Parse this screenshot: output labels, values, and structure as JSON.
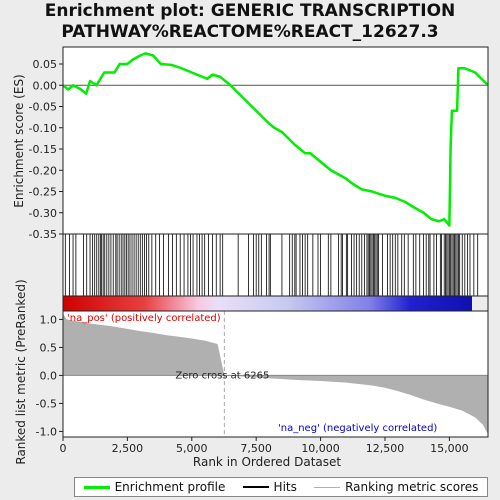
{
  "title_line1": "Enrichment plot: GENERIC TRANSCRIPTION",
  "title_line2": "PATHWAY%REACTOME%REACT_12627.3",
  "legend": {
    "profile": "Enrichment profile",
    "hits": "Hits",
    "ranking": "Ranking metric scores"
  },
  "colors": {
    "profile": "#00ee00",
    "hits": "#000000",
    "ranking": "#b0b0b0",
    "positive": "#dd0000",
    "negative": "#0000cc"
  },
  "chart_data": {
    "type": "line",
    "x_range": [
      0,
      16500
    ],
    "x_ticks": [
      "0",
      "2,500",
      "5,000",
      "7,500",
      "10,000",
      "12,500",
      "15,000"
    ],
    "x_tick_values": [
      0,
      2500,
      5000,
      7500,
      10000,
      12500,
      15000
    ],
    "xlabel": "Rank in Ordered Dataset",
    "top": {
      "ylabel": "Enrichment score (ES)",
      "ylim": [
        -0.35,
        0.09
      ],
      "y_ticks": [
        "0.05",
        "0.00",
        "-0.05",
        "-0.10",
        "-0.15",
        "-0.20",
        "-0.25",
        "-0.30",
        "-0.35"
      ],
      "y_tick_values": [
        0.05,
        0.0,
        -0.05,
        -0.1,
        -0.15,
        -0.2,
        -0.25,
        -0.3,
        -0.35
      ],
      "profile": [
        [
          0,
          0
        ],
        [
          200,
          -0.01
        ],
        [
          400,
          0.0
        ],
        [
          700,
          -0.01
        ],
        [
          900,
          -0.02
        ],
        [
          1050,
          0.01
        ],
        [
          1300,
          0.0
        ],
        [
          1400,
          0.01
        ],
        [
          1600,
          0.03
        ],
        [
          2000,
          0.03
        ],
        [
          2200,
          0.05
        ],
        [
          2500,
          0.05
        ],
        [
          2700,
          0.06
        ],
        [
          3000,
          0.07
        ],
        [
          3200,
          0.075
        ],
        [
          3500,
          0.07
        ],
        [
          3800,
          0.05
        ],
        [
          4200,
          0.048
        ],
        [
          4600,
          0.04
        ],
        [
          5000,
          0.03
        ],
        [
          5400,
          0.02
        ],
        [
          5600,
          0.015
        ],
        [
          5800,
          0.025
        ],
        [
          6100,
          0.02
        ],
        [
          6500,
          0.0
        ],
        [
          7000,
          -0.03
        ],
        [
          7500,
          -0.06
        ],
        [
          8000,
          -0.09
        ],
        [
          8200,
          -0.1
        ],
        [
          8500,
          -0.11
        ],
        [
          9000,
          -0.14
        ],
        [
          9400,
          -0.16
        ],
        [
          9600,
          -0.16
        ],
        [
          10000,
          -0.18
        ],
        [
          10400,
          -0.2
        ],
        [
          10700,
          -0.21
        ],
        [
          11000,
          -0.22
        ],
        [
          11200,
          -0.23
        ],
        [
          11600,
          -0.245
        ],
        [
          12000,
          -0.25
        ],
        [
          12500,
          -0.26
        ],
        [
          12900,
          -0.265
        ],
        [
          13300,
          -0.275
        ],
        [
          13700,
          -0.29
        ],
        [
          14000,
          -0.3
        ],
        [
          14300,
          -0.315
        ],
        [
          14600,
          -0.32
        ],
        [
          14800,
          -0.315
        ],
        [
          15000,
          -0.33
        ],
        [
          15050,
          -0.14
        ],
        [
          15100,
          -0.06
        ],
        [
          15300,
          -0.06
        ],
        [
          15350,
          0.04
        ],
        [
          15600,
          0.04
        ],
        [
          16000,
          0.03
        ],
        [
          16500,
          0.0
        ]
      ],
      "hits": [
        90,
        250,
        390,
        500,
        800,
        920,
        1050,
        1150,
        1230,
        1310,
        1390,
        1450,
        1500,
        1560,
        1620,
        1700,
        1780,
        1860,
        1950,
        2050,
        2100,
        2180,
        2260,
        2330,
        2400,
        2460,
        2530,
        2600,
        2680,
        2760,
        2840,
        2920,
        3000,
        3080,
        3160,
        3240,
        3330,
        3450,
        3600,
        3750,
        3900,
        4100,
        4250,
        4400,
        4550,
        4700,
        4850,
        4950,
        5050,
        5200,
        5300,
        5400,
        5500,
        5650,
        5800,
        5950,
        6100,
        6200,
        6800,
        7200,
        7400,
        7500,
        7600,
        7700,
        7900,
        8000,
        8050,
        8500,
        8800,
        8900,
        9000,
        9050,
        9200,
        9300,
        9400,
        9500,
        9700,
        9900,
        10000,
        10300,
        10400,
        10700,
        10800,
        10850,
        11000,
        11050,
        11200,
        11300,
        11400,
        11500,
        11600,
        11700,
        11800,
        11850,
        11900,
        11950,
        12000,
        12050,
        12100,
        12150,
        12200,
        12250,
        12400,
        12600,
        12700,
        12800,
        12900,
        13000,
        13150,
        13250,
        13400,
        13600,
        13700,
        13850,
        14000,
        14100,
        14200,
        14250,
        14400,
        14500,
        14650,
        14700,
        14800,
        14850,
        14900,
        14950,
        15000,
        15050,
        15100,
        15150,
        15200,
        15250,
        15300,
        15350,
        15400,
        15500,
        15600,
        15700,
        15800,
        15950,
        16100
      ]
    },
    "bottom": {
      "ylabel": "Ranked list metric (PreRanked)",
      "ylim": [
        -1.1,
        1.15
      ],
      "y_ticks": [
        "1.0",
        "0.5",
        "0.0",
        "-0.5",
        "-1.0"
      ],
      "y_tick_values": [
        1.0,
        0.5,
        0.0,
        -0.5,
        -1.0
      ],
      "zero_cross": 6265,
      "zero_cross_label": "Zero cross at 6265",
      "pos_label": "'na_pos' (positively correlated)",
      "neg_label": "'na_neg' (negatively correlated)",
      "metric": [
        [
          0,
          1.1
        ],
        [
          150,
          1.0
        ],
        [
          500,
          0.97
        ],
        [
          1000,
          0.93
        ],
        [
          1500,
          0.9
        ],
        [
          2000,
          0.87
        ],
        [
          2500,
          0.83
        ],
        [
          3000,
          0.79
        ],
        [
          3500,
          0.76
        ],
        [
          4000,
          0.72
        ],
        [
          4500,
          0.69
        ],
        [
          5000,
          0.66
        ],
        [
          5500,
          0.62
        ],
        [
          6000,
          0.56
        ],
        [
          6265,
          0.0
        ],
        [
          7000,
          -0.02
        ],
        [
          8000,
          -0.05
        ],
        [
          9000,
          -0.08
        ],
        [
          10000,
          -0.1
        ],
        [
          11000,
          -0.13
        ],
        [
          12000,
          -0.18
        ],
        [
          12500,
          -0.22
        ],
        [
          13000,
          -0.28
        ],
        [
          13500,
          -0.35
        ],
        [
          14000,
          -0.43
        ],
        [
          14500,
          -0.5
        ],
        [
          15000,
          -0.56
        ],
        [
          15500,
          -0.63
        ],
        [
          16000,
          -0.75
        ],
        [
          16300,
          -0.88
        ],
        [
          16500,
          -1.05
        ]
      ]
    }
  }
}
